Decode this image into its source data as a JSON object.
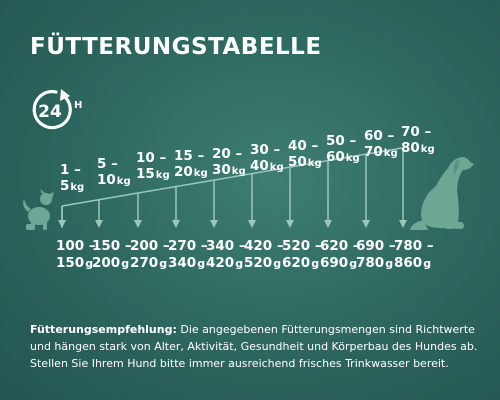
{
  "title": "FÜTTERUNGSTABELLE",
  "clock": {
    "number": "24",
    "unit": "H",
    "icon": "24h-clock-icon"
  },
  "colors": {
    "background": "#2f6a61",
    "text": "#ffffff",
    "arrow": "#8fbfb3",
    "dog": "#6da897"
  },
  "weights": [
    {
      "line1": "1 –",
      "line2": "5",
      "unit": "kg"
    },
    {
      "line1": "5 –",
      "line2": "10",
      "unit": "kg"
    },
    {
      "line1": "10 –",
      "line2": "15",
      "unit": "kg"
    },
    {
      "line1": "15 –",
      "line2": "20",
      "unit": "kg"
    },
    {
      "line1": "20 –",
      "line2": "30",
      "unit": "kg"
    },
    {
      "line1": "30 –",
      "line2": "40",
      "unit": "kg"
    },
    {
      "line1": "40 –",
      "line2": "50",
      "unit": "kg"
    },
    {
      "line1": "50 –",
      "line2": "60",
      "unit": "kg"
    },
    {
      "line1": "60 –",
      "line2": "70",
      "unit": "kg"
    },
    {
      "line1": "70 –",
      "line2": "80",
      "unit": "kg"
    }
  ],
  "amounts": [
    {
      "line1": "100 –",
      "line2": "150",
      "unit": "g"
    },
    {
      "line1": "150 –",
      "line2": "200",
      "unit": "g"
    },
    {
      "line1": "200 –",
      "line2": "270",
      "unit": "g"
    },
    {
      "line1": "270 –",
      "line2": "340",
      "unit": "g"
    },
    {
      "line1": "340 –",
      "line2": "420",
      "unit": "g"
    },
    {
      "line1": "420 –",
      "line2": "520",
      "unit": "g"
    },
    {
      "line1": "520 –",
      "line2": "620",
      "unit": "g"
    },
    {
      "line1": "620 –",
      "line2": "690",
      "unit": "g"
    },
    {
      "line1": "690 –",
      "line2": "780",
      "unit": "g"
    },
    {
      "line1": "780 –",
      "line2": "860",
      "unit": "g"
    }
  ],
  "note": {
    "label": "Fütterungsempfehlung:",
    "text": " Die angegebenen Fütterungsmengen sind Richtwerte und hängen stark von Alter, Aktivität, Gesundheit und Körperbau des Hundes ab. Stellen Sie Ihrem Hund bitte immer ausreichend frisches Trinkwasser bereit."
  }
}
